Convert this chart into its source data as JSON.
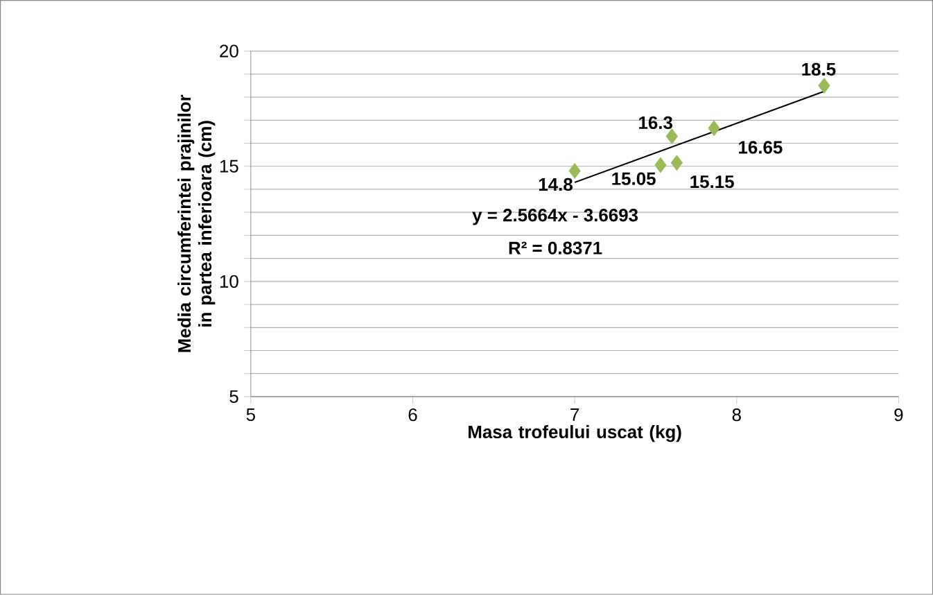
{
  "chart_data": {
    "type": "scatter",
    "xlabel": "Masa trofeului uscat (kg)",
    "ylabel": "Media circumferintei prajinilor in partea inferioara (cm)",
    "series": [
      {
        "color": "#9bbb59",
        "marker": "diamond",
        "x": [
          7.0,
          7.53,
          7.6,
          7.63,
          7.86,
          8.54
        ],
        "values": [
          14.8,
          15.05,
          16.3,
          15.15,
          16.65,
          18.5
        ],
        "value_labels": [
          "14.8",
          "15.05",
          "16.3",
          "15.15",
          "16.65",
          "18.5"
        ]
      },
      {
        "type": "line",
        "color": "#000000",
        "marker": "none",
        "x": [
          7.0,
          8.54
        ],
        "values": [
          14.3,
          18.25
        ]
      }
    ],
    "xlim": [
      5,
      9
    ],
    "xticks": [
      5,
      6,
      7,
      8,
      9
    ],
    "ylim": [
      5,
      20
    ],
    "yticks": [
      5,
      {
        "value": 6,
        "label": null
      },
      {
        "value": 7,
        "label": null
      },
      {
        "value": 8,
        "label": null
      },
      {
        "value": 9,
        "label": null
      },
      10,
      {
        "value": 11,
        "label": null
      },
      {
        "value": 12,
        "label": null
      },
      {
        "value": 13,
        "label": null
      },
      {
        "value": 14,
        "label": null
      },
      15,
      {
        "value": 16,
        "label": null
      },
      {
        "value": 17,
        "label": null
      },
      {
        "value": 18,
        "label": null
      },
      {
        "value": 19,
        "label": null
      },
      20
    ],
    "grid": "y",
    "annotations": [
      "y = 2.5664x - 3.6693",
      "R² = 0.8371"
    ]
  }
}
